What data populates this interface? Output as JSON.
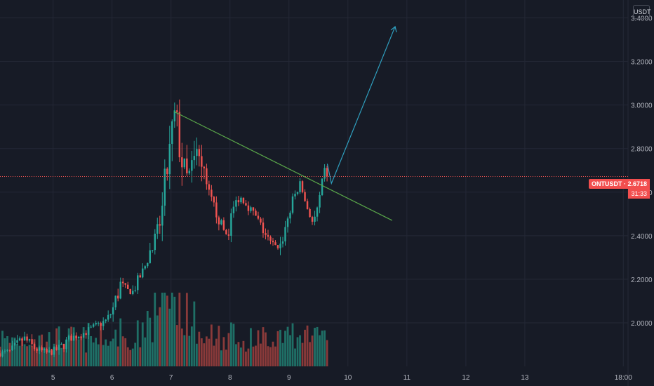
{
  "currency_button": "USDT",
  "price_label": {
    "symbol": "ONTUSDT",
    "value": "2.6718",
    "countdown": "31:33"
  },
  "colors": {
    "up": "#26a69a",
    "down": "#ef5350",
    "up_vol": "#1f6f66",
    "down_vol": "#8a3a3a",
    "trendline": "#5aa84a",
    "arrow": "#2f9fbf",
    "price_line": "#ef5350"
  },
  "chart_data": {
    "type": "candlestick",
    "title": "",
    "xlabel": "",
    "ylabel": "",
    "ylim": [
      1.8,
      3.45
    ],
    "xlim": [
      4.1,
      14.75
    ],
    "y_ticks": [
      "2.0000",
      "2.2000",
      "2.4000",
      "2.6000",
      "2.8000",
      "3.0000",
      "3.2000",
      "3.4000"
    ],
    "x_ticks": [
      {
        "value": 5,
        "label": "5"
      },
      {
        "value": 6,
        "label": "6"
      },
      {
        "value": 7,
        "label": "7"
      },
      {
        "value": 8,
        "label": "8"
      },
      {
        "value": 9,
        "label": "9"
      },
      {
        "value": 10,
        "label": "10"
      },
      {
        "value": 11,
        "label": "11"
      },
      {
        "value": 12,
        "label": "12"
      },
      {
        "value": 13,
        "label": "13"
      },
      {
        "value": 14.67,
        "label": "18:00"
      }
    ],
    "last_price": 2.6718,
    "candle_path": [
      [
        4.1,
        1.86
      ],
      [
        4.3,
        1.87
      ],
      [
        4.5,
        1.93
      ],
      [
        4.7,
        1.88
      ],
      [
        4.9,
        1.86
      ],
      [
        5.1,
        1.88
      ],
      [
        5.3,
        1.93
      ],
      [
        5.5,
        1.95
      ],
      [
        5.7,
        1.98
      ],
      [
        5.9,
        2.01
      ],
      [
        6.0,
        2.05
      ],
      [
        6.15,
        2.18
      ],
      [
        6.25,
        2.15
      ],
      [
        6.35,
        2.14
      ],
      [
        6.45,
        2.2
      ],
      [
        6.55,
        2.25
      ],
      [
        6.65,
        2.34
      ],
      [
        6.75,
        2.4
      ],
      [
        6.85,
        2.5
      ],
      [
        6.92,
        2.68
      ],
      [
        7.0,
        2.82
      ],
      [
        7.05,
        2.96
      ],
      [
        7.1,
        2.9
      ],
      [
        7.2,
        2.72
      ],
      [
        7.28,
        2.65
      ],
      [
        7.35,
        2.7
      ],
      [
        7.45,
        2.78
      ],
      [
        7.55,
        2.66
      ],
      [
        7.65,
        2.58
      ],
      [
        7.75,
        2.52
      ],
      [
        7.85,
        2.45
      ],
      [
        7.95,
        2.4
      ],
      [
        8.05,
        2.52
      ],
      [
        8.15,
        2.58
      ],
      [
        8.25,
        2.56
      ],
      [
        8.35,
        2.52
      ],
      [
        8.45,
        2.48
      ],
      [
        8.55,
        2.43
      ],
      [
        8.65,
        2.38
      ],
      [
        8.75,
        2.35
      ],
      [
        8.85,
        2.35
      ],
      [
        8.95,
        2.45
      ],
      [
        9.05,
        2.55
      ],
      [
        9.12,
        2.6
      ],
      [
        9.2,
        2.64
      ],
      [
        9.28,
        2.55
      ],
      [
        9.35,
        2.5
      ],
      [
        9.42,
        2.45
      ],
      [
        9.5,
        2.54
      ],
      [
        9.55,
        2.6
      ],
      [
        9.6,
        2.7
      ],
      [
        9.65,
        2.6718
      ]
    ],
    "volume_max": 1.0,
    "trendline": {
      "x1": 7.05,
      "y1": 2.97,
      "x2": 10.75,
      "y2": 2.47
    },
    "projection_arrow": [
      [
        9.65,
        2.73
      ],
      [
        9.72,
        2.64
      ],
      [
        10.8,
        3.36
      ]
    ]
  }
}
